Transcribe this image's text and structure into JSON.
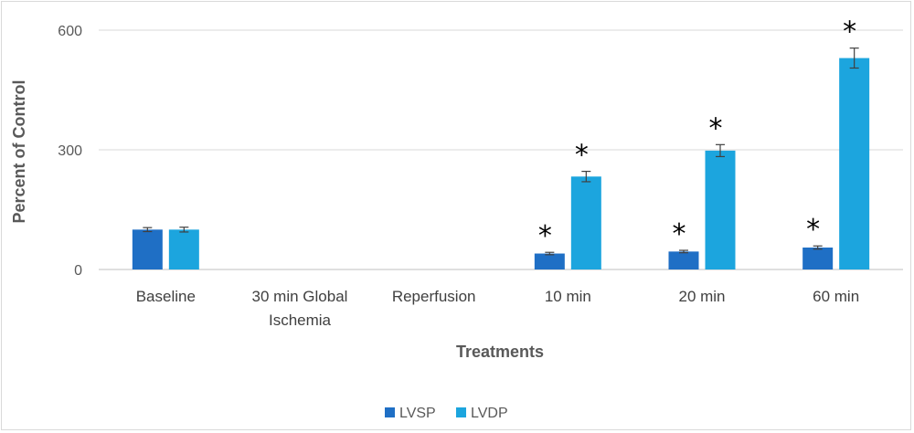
{
  "chart_data": {
    "type": "bar",
    "categories": [
      [
        "Baseline"
      ],
      [
        "30 min Global",
        "Ischemia"
      ],
      [
        "Reperfusion"
      ],
      [
        "10 min"
      ],
      [
        "20 min"
      ],
      [
        "60 min"
      ]
    ],
    "series": [
      {
        "name": "LVSP",
        "color": "#1F6FC5",
        "values": [
          100,
          null,
          null,
          40,
          45,
          55
        ],
        "errors": [
          5,
          null,
          null,
          3,
          3,
          4
        ]
      },
      {
        "name": "LVDP",
        "color": "#1CA5DE",
        "values": [
          100,
          null,
          null,
          233,
          298,
          530
        ],
        "errors": [
          6,
          null,
          null,
          13,
          15,
          25
        ]
      }
    ],
    "significance_marker": "*",
    "significant": [
      [
        false,
        false,
        false,
        true,
        true,
        true
      ],
      [
        false,
        false,
        false,
        true,
        true,
        true
      ]
    ],
    "xlabel": "Treatments",
    "ylabel": "Percent of Control",
    "yticks": [
      0,
      300,
      600
    ],
    "ylim": [
      0,
      600
    ],
    "grid": true,
    "legend_position": "bottom"
  }
}
